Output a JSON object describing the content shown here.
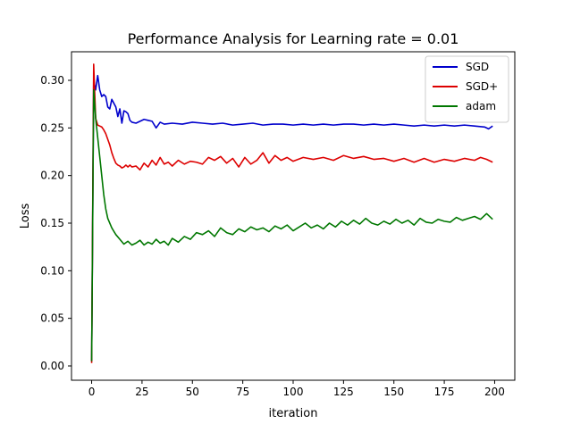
{
  "chart_data": {
    "type": "line",
    "title": "Performance Analysis for Learning rate = 0.01",
    "xlabel": "iteration",
    "ylabel": "Loss",
    "xlim": [
      -10,
      210
    ],
    "ylim": [
      -0.015,
      0.33
    ],
    "xticks": [
      0,
      25,
      50,
      75,
      100,
      125,
      150,
      175,
      200
    ],
    "yticks": [
      0.0,
      0.05,
      0.1,
      0.15,
      0.2,
      0.25,
      0.3
    ],
    "ytick_labels": [
      "0.00",
      "0.05",
      "0.10",
      "0.15",
      "0.20",
      "0.25",
      "0.30"
    ],
    "grid": false,
    "legend": "top-right",
    "series": [
      {
        "name": "SGD",
        "color": "#0000cc",
        "x": [
          0,
          1,
          2,
          3,
          4,
          5,
          6,
          7,
          8,
          9,
          10,
          11,
          12,
          13,
          14,
          15,
          16,
          17,
          18,
          19,
          20,
          22,
          24,
          26,
          28,
          30,
          32,
          34,
          36,
          40,
          45,
          50,
          55,
          60,
          65,
          70,
          75,
          80,
          85,
          90,
          95,
          100,
          105,
          110,
          115,
          120,
          125,
          130,
          135,
          140,
          145,
          150,
          155,
          160,
          165,
          170,
          175,
          180,
          185,
          190,
          195,
          197,
          199
        ],
        "values": [
          0.005,
          0.3,
          0.29,
          0.305,
          0.29,
          0.283,
          0.285,
          0.283,
          0.272,
          0.27,
          0.28,
          0.276,
          0.272,
          0.262,
          0.27,
          0.255,
          0.268,
          0.267,
          0.265,
          0.258,
          0.256,
          0.255,
          0.257,
          0.259,
          0.258,
          0.257,
          0.25,
          0.256,
          0.254,
          0.255,
          0.254,
          0.256,
          0.255,
          0.254,
          0.255,
          0.253,
          0.254,
          0.255,
          0.253,
          0.254,
          0.254,
          0.253,
          0.254,
          0.253,
          0.254,
          0.253,
          0.254,
          0.254,
          0.253,
          0.254,
          0.253,
          0.254,
          0.253,
          0.252,
          0.253,
          0.252,
          0.253,
          0.252,
          0.253,
          0.252,
          0.251,
          0.249,
          0.252
        ]
      },
      {
        "name": "SGD+",
        "color": "#dd0000",
        "x": [
          0,
          1,
          2,
          3,
          4,
          5,
          6,
          7,
          8,
          9,
          10,
          11,
          12,
          13,
          14,
          15,
          16,
          17,
          18,
          19,
          20,
          22,
          24,
          26,
          28,
          30,
          32,
          34,
          36,
          38,
          40,
          43,
          46,
          49,
          52,
          55,
          58,
          61,
          64,
          67,
          70,
          73,
          76,
          79,
          82,
          85,
          88,
          91,
          94,
          97,
          100,
          105,
          110,
          115,
          120,
          125,
          130,
          135,
          140,
          145,
          150,
          155,
          160,
          165,
          170,
          175,
          180,
          185,
          190,
          193,
          196,
          199
        ],
        "values": [
          0.003,
          0.317,
          0.26,
          0.253,
          0.252,
          0.251,
          0.248,
          0.244,
          0.238,
          0.232,
          0.224,
          0.218,
          0.213,
          0.211,
          0.21,
          0.208,
          0.209,
          0.211,
          0.209,
          0.211,
          0.209,
          0.21,
          0.206,
          0.213,
          0.209,
          0.216,
          0.211,
          0.219,
          0.212,
          0.214,
          0.21,
          0.216,
          0.212,
          0.215,
          0.214,
          0.212,
          0.219,
          0.216,
          0.22,
          0.213,
          0.218,
          0.209,
          0.219,
          0.212,
          0.216,
          0.224,
          0.213,
          0.221,
          0.216,
          0.219,
          0.215,
          0.219,
          0.217,
          0.219,
          0.216,
          0.221,
          0.218,
          0.22,
          0.217,
          0.218,
          0.215,
          0.218,
          0.214,
          0.218,
          0.214,
          0.217,
          0.215,
          0.218,
          0.216,
          0.219,
          0.217,
          0.214
        ]
      },
      {
        "name": "adam",
        "color": "#007700",
        "x": [
          0,
          1,
          2,
          3,
          4,
          5,
          6,
          7,
          8,
          10,
          12,
          14,
          16,
          18,
          20,
          22,
          24,
          26,
          28,
          30,
          32,
          34,
          36,
          38,
          40,
          43,
          46,
          49,
          52,
          55,
          58,
          61,
          64,
          67,
          70,
          73,
          76,
          79,
          82,
          85,
          88,
          91,
          94,
          97,
          100,
          103,
          106,
          109,
          112,
          115,
          118,
          121,
          124,
          127,
          130,
          133,
          136,
          139,
          142,
          145,
          148,
          151,
          154,
          157,
          160,
          163,
          166,
          169,
          172,
          175,
          178,
          181,
          184,
          187,
          190,
          193,
          196,
          199
        ],
        "values": [
          0.005,
          0.29,
          0.26,
          0.24,
          0.22,
          0.2,
          0.18,
          0.165,
          0.155,
          0.145,
          0.138,
          0.133,
          0.128,
          0.131,
          0.127,
          0.129,
          0.132,
          0.127,
          0.13,
          0.128,
          0.133,
          0.129,
          0.131,
          0.127,
          0.134,
          0.13,
          0.136,
          0.133,
          0.14,
          0.138,
          0.142,
          0.136,
          0.145,
          0.14,
          0.138,
          0.144,
          0.141,
          0.146,
          0.143,
          0.145,
          0.141,
          0.147,
          0.144,
          0.148,
          0.142,
          0.146,
          0.15,
          0.145,
          0.148,
          0.144,
          0.15,
          0.146,
          0.152,
          0.148,
          0.153,
          0.149,
          0.155,
          0.15,
          0.148,
          0.152,
          0.149,
          0.154,
          0.15,
          0.153,
          0.148,
          0.155,
          0.151,
          0.15,
          0.154,
          0.152,
          0.151,
          0.156,
          0.153,
          0.155,
          0.157,
          0.154,
          0.16,
          0.154
        ]
      }
    ]
  }
}
